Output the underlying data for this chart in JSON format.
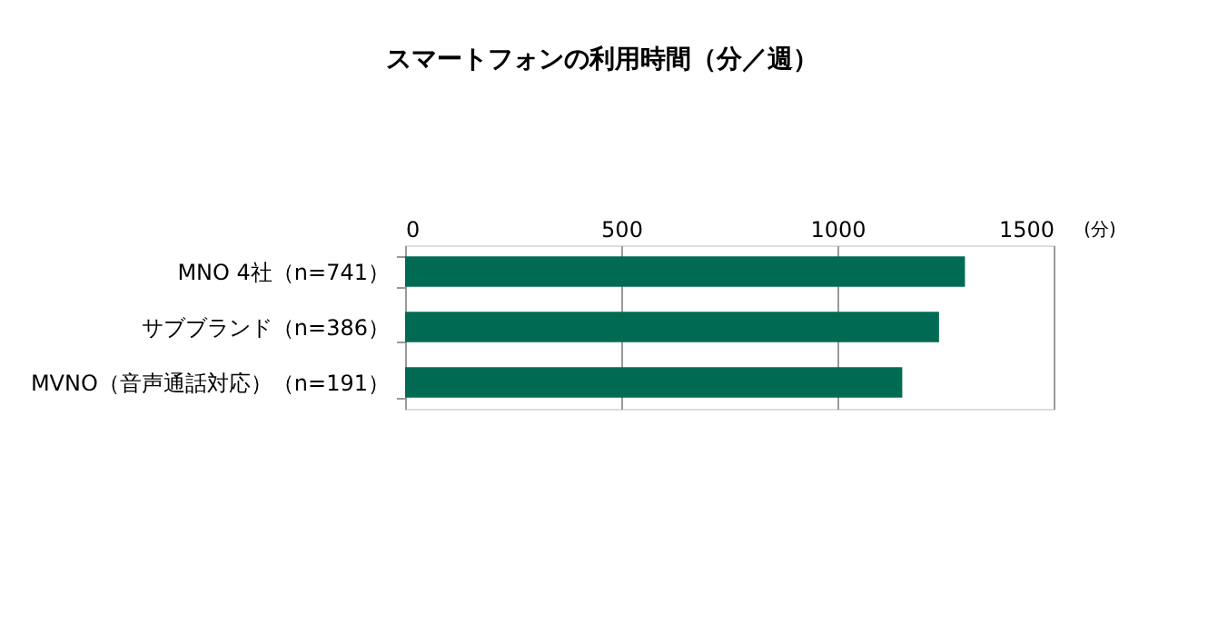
{
  "chart_data": {
    "type": "bar",
    "orientation": "horizontal",
    "title": "スマートフォンの利用時間（分／週）",
    "xlabel": "(分)",
    "categories": [
      "MNO 4社（n=741）",
      "サブブランド（n=386）",
      "MVNO（音声通話対応）（n=191）"
    ],
    "values": [
      1295,
      1235,
      1150
    ],
    "color": "#006b52",
    "xlim": [
      0,
      1500
    ],
    "xticks": [
      0,
      500,
      1000,
      1500
    ],
    "grid": "x"
  }
}
